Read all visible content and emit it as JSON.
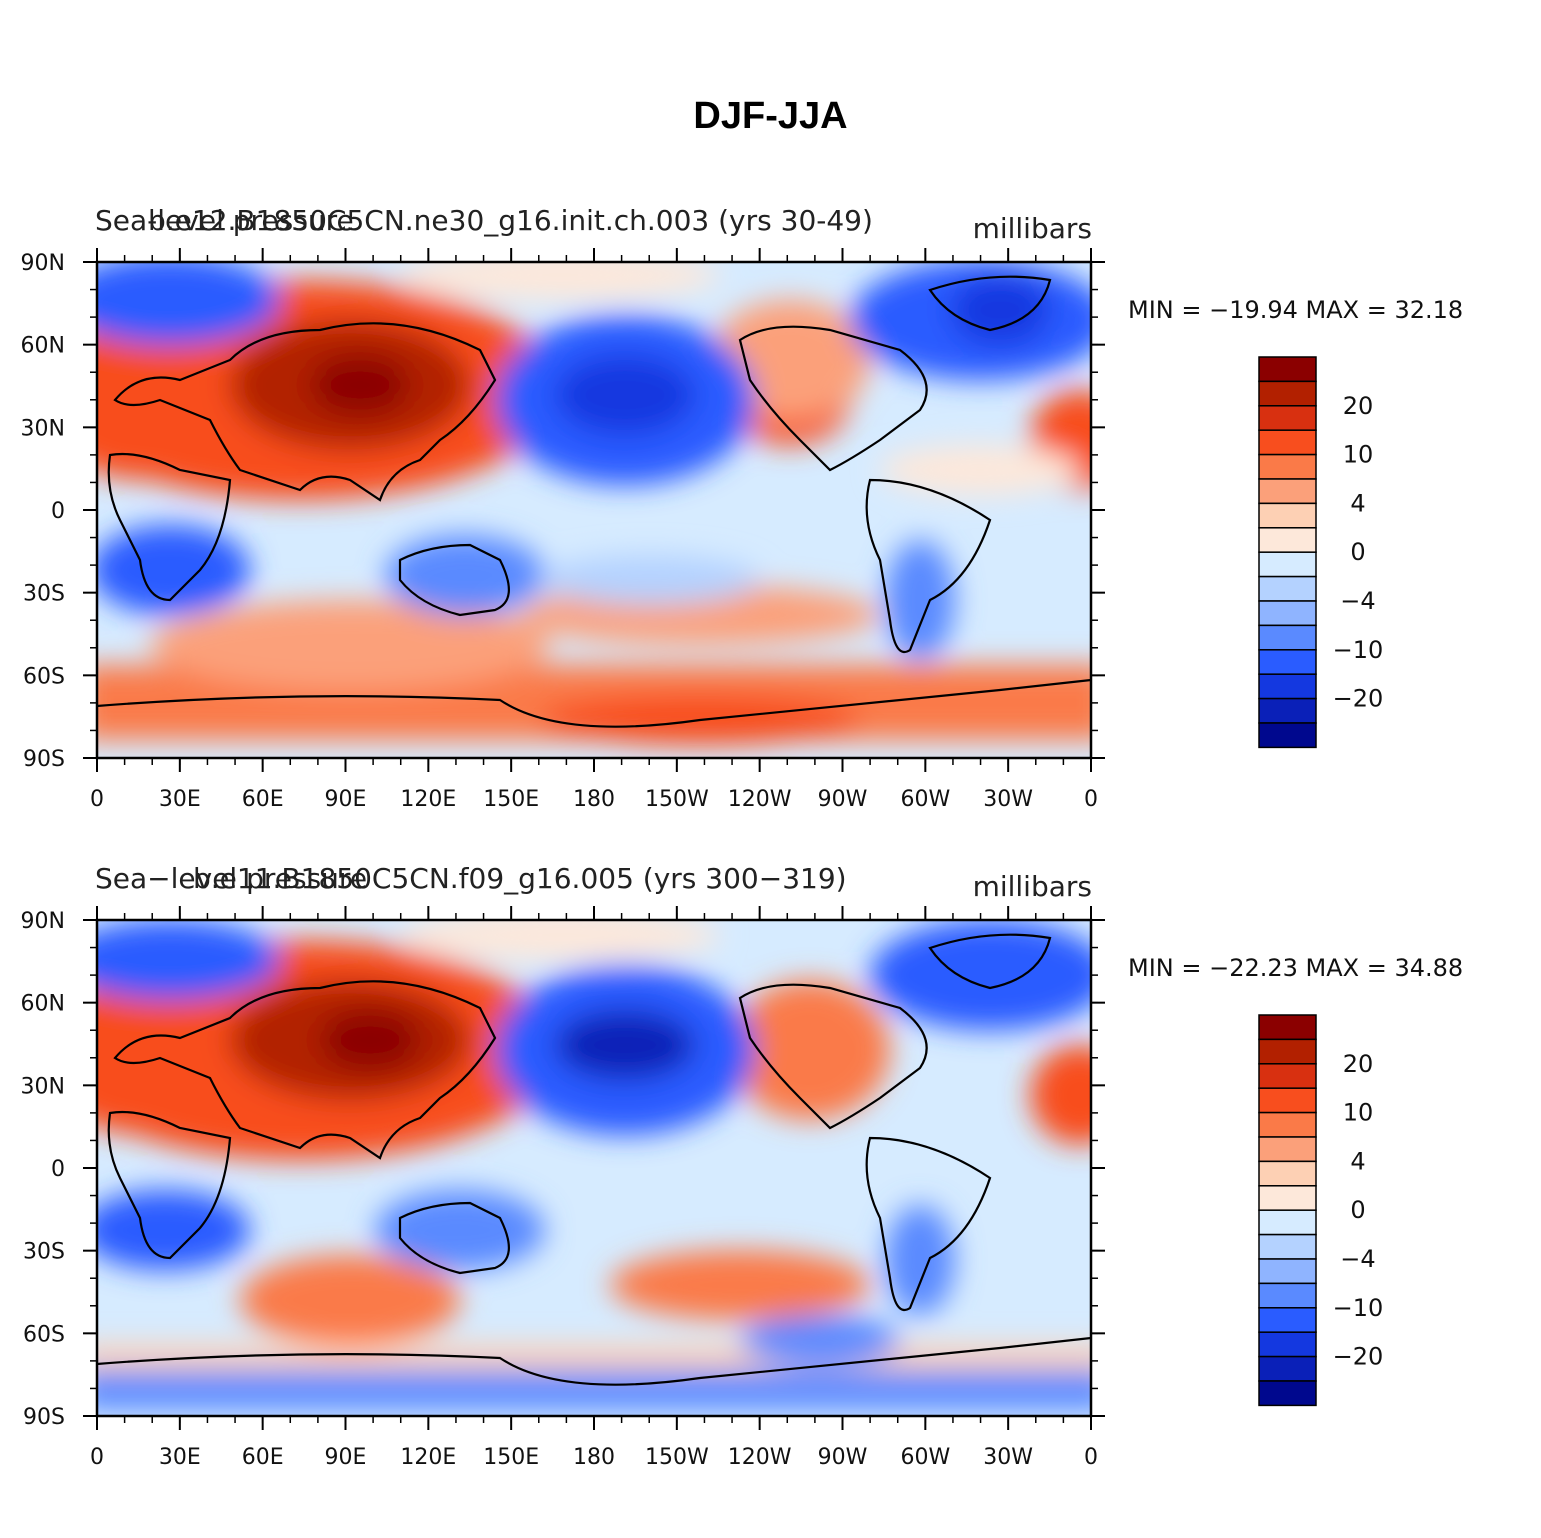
{
  "figure": {
    "title": "DJF-JJA"
  },
  "axes": {
    "lat_labels": [
      "90N",
      "60N",
      "30N",
      "0",
      "30S",
      "60S",
      "90S"
    ],
    "lon_labels": [
      "0",
      "30E",
      "60E",
      "90E",
      "120E",
      "150E",
      "180",
      "150W",
      "120W",
      "90W",
      "60W",
      "30W",
      "0"
    ]
  },
  "colorbar": {
    "colors": [
      "#8b0000",
      "#b22000",
      "#d83010",
      "#f84e1e",
      "#fa7a48",
      "#fba07a",
      "#fdd0b4",
      "#fde8da",
      "#d6ebff",
      "#b4d2ff",
      "#8fb4ff",
      "#5a8aff",
      "#2a5cff",
      "#1438e0",
      "#0a20b8",
      "#00088e"
    ],
    "labels": [
      {
        "text": "20",
        "after_box": 1
      },
      {
        "text": "10",
        "after_box": 3
      },
      {
        "text": "4",
        "after_box": 5
      },
      {
        "text": "0",
        "after_box": 7
      },
      {
        "text": "−4",
        "after_box": 9
      },
      {
        "text": "−10",
        "after_box": 11
      },
      {
        "text": "−20",
        "after_box": 13
      }
    ]
  },
  "panels": [
    {
      "left_title": "Sea-level pressure",
      "center_title": "b.e12.B1850C5CN.ne30_g16.init.ch.003 (yrs 30-49)",
      "units": "millibars",
      "min_max": "MIN = −19.94  MAX =   32.18"
    },
    {
      "left_title": "Sea−level pressure",
      "center_title": "b.e11.B1850C5CN.f09_g16.005 (yrs 300−319)",
      "units": "millibars",
      "min_max": "MIN = −22.23  MAX =   34.88"
    }
  ]
}
